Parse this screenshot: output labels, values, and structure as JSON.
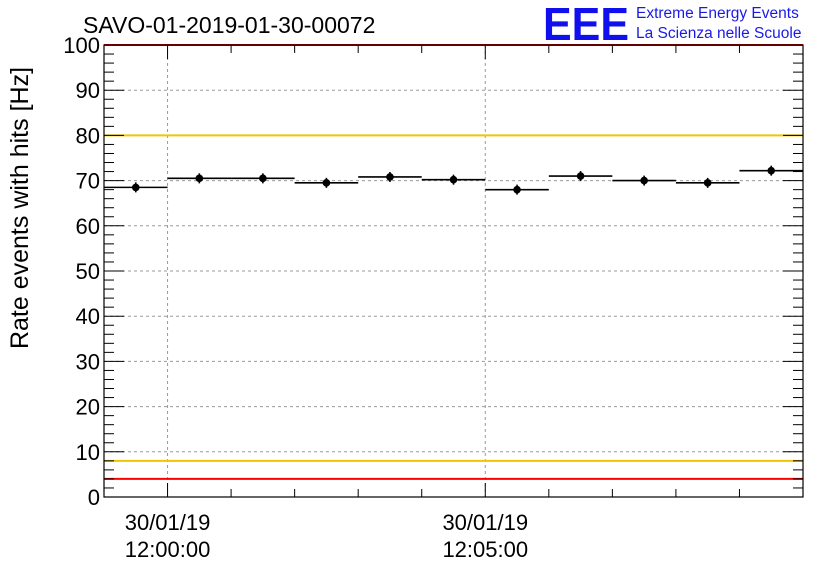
{
  "chart_data": {
    "type": "scatter",
    "title": "SAVO-01-2019-01-30-00072",
    "ylabel": "Rate events with hits [Hz]",
    "xlabel": "",
    "ylim": [
      0,
      100
    ],
    "yticks": [
      0,
      10,
      20,
      30,
      40,
      50,
      60,
      70,
      80,
      90,
      100
    ],
    "xlim_minutes": [
      -1.0,
      10.0
    ],
    "xticks": [
      {
        "minute": 0,
        "date": "30/01/19",
        "time": "12:00:00"
      },
      {
        "minute": 5,
        "date": "30/01/19",
        "time": "12:05:00"
      }
    ],
    "bin_width_minutes": 1.0,
    "series": [
      {
        "name": "rate",
        "x_minutes": [
          -0.5,
          0.5,
          1.5,
          2.5,
          3.5,
          4.5,
          5.5,
          6.5,
          7.5,
          8.5,
          9.5
        ],
        "values": [
          68.5,
          70.5,
          70.5,
          69.5,
          70.8,
          70.2,
          68.0,
          71.0,
          70.0,
          69.5,
          72.2
        ]
      }
    ],
    "reference_lines": [
      {
        "name": "upper-red-limit",
        "value": 100,
        "color": "#ff0000"
      },
      {
        "name": "upper-yellow-limit",
        "value": 80,
        "color": "#f2c500"
      },
      {
        "name": "lower-yellow-limit",
        "value": 8,
        "color": "#f2c500"
      },
      {
        "name": "lower-red-limit",
        "value": 4,
        "color": "#ff0000"
      }
    ],
    "grid": true
  },
  "logo": {
    "mark": "EEE",
    "line1": "Extreme Energy Events",
    "line2": "La Scienza nelle Scuole",
    "color": "#1010ee"
  }
}
